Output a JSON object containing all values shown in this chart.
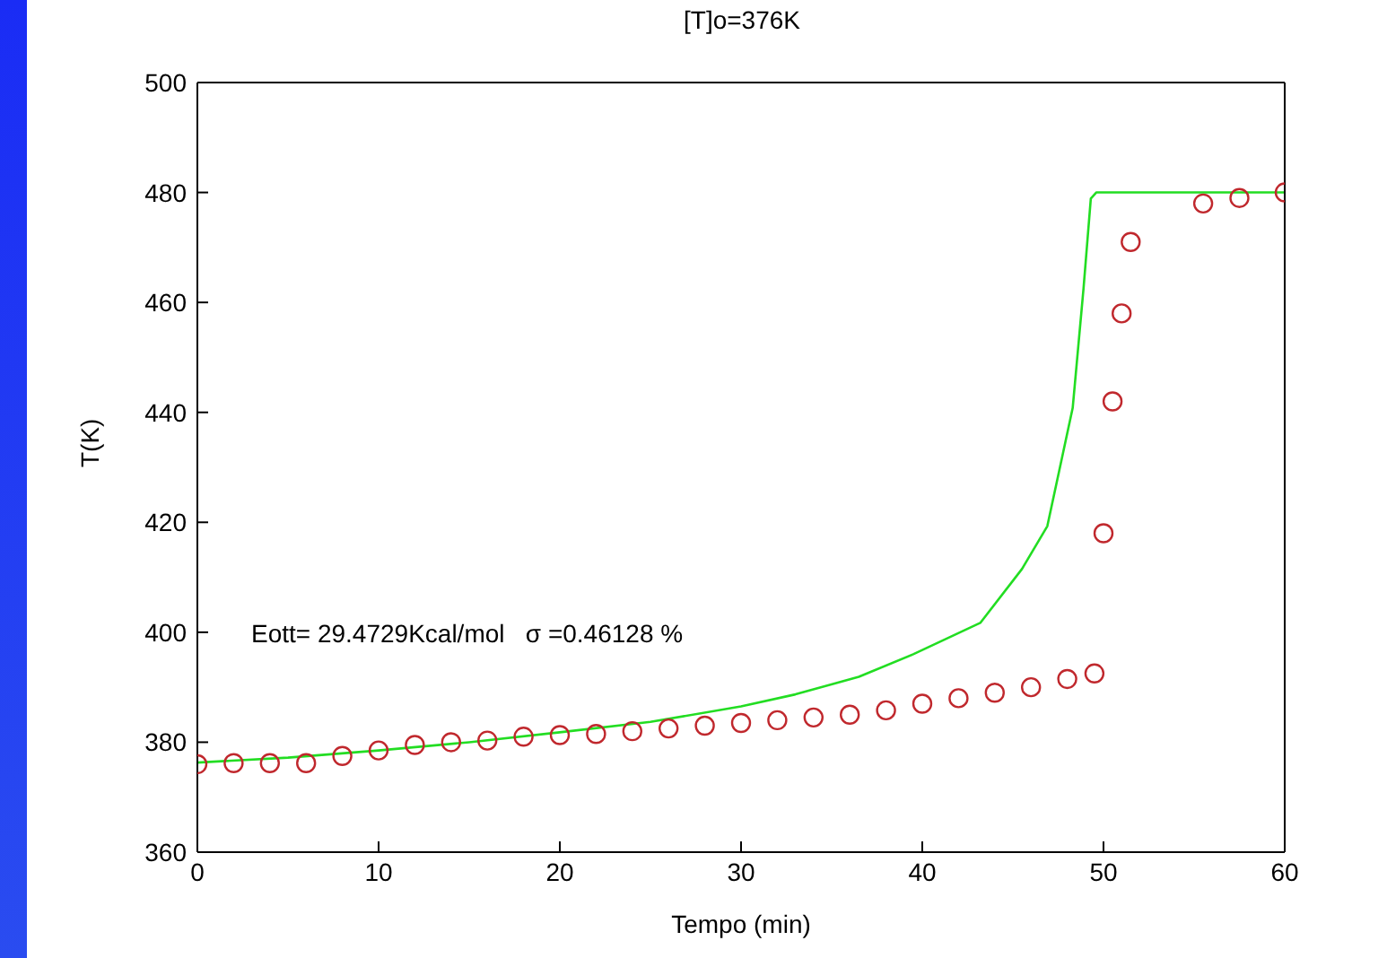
{
  "chart_data": {
    "type": "scatter",
    "title": "[T]o=376K",
    "xlabel": "Tempo (min)",
    "ylabel": "T(K)",
    "annotations": [
      "Eott= 29.4729Kcal/mol   σ =0.46128 %"
    ],
    "xlim": [
      0,
      60
    ],
    "xticks": [
      0,
      10,
      20,
      30,
      40,
      50,
      60
    ],
    "ylim": [
      360,
      500
    ],
    "yticks": [
      360,
      380,
      400,
      420,
      440,
      460,
      480,
      500
    ],
    "grid": false,
    "series": [
      {
        "color": "#c0282d",
        "marker": "circle",
        "x": [
          0,
          2,
          4,
          6,
          8,
          10,
          12,
          14,
          16,
          18,
          20,
          22,
          24,
          26,
          28,
          30,
          32,
          34,
          36,
          38,
          40,
          42,
          44,
          46,
          48,
          49.5,
          50,
          50.5,
          51,
          51.5,
          55.5,
          57.5,
          60
        ],
        "values": [
          376,
          376.2,
          376.2,
          376.2,
          377.5,
          378.5,
          379.5,
          380,
          380.3,
          381,
          381.3,
          381.5,
          382,
          382.5,
          383,
          383.5,
          384,
          384.5,
          385,
          385.8,
          387,
          388,
          389,
          390,
          391.5,
          392.5,
          418,
          442,
          458,
          471,
          478,
          479,
          480
        ]
      },
      {
        "type": "line",
        "color": "#22dd22",
        "marker": "none",
        "line_style": "solid",
        "x": [
          0,
          5,
          10,
          15,
          20,
          25,
          30,
          33,
          36.5,
          39.5,
          43.2,
          45.5,
          46.9,
          48.3,
          48.9,
          49.3,
          49.6,
          60
        ],
        "values": [
          376.3,
          377.2,
          378.5,
          380,
          381.8,
          383.7,
          386.5,
          388.7,
          391.9,
          396,
          401.7,
          411.5,
          419.3,
          440.8,
          462.6,
          478.9,
          480,
          480
        ]
      }
    ]
  }
}
